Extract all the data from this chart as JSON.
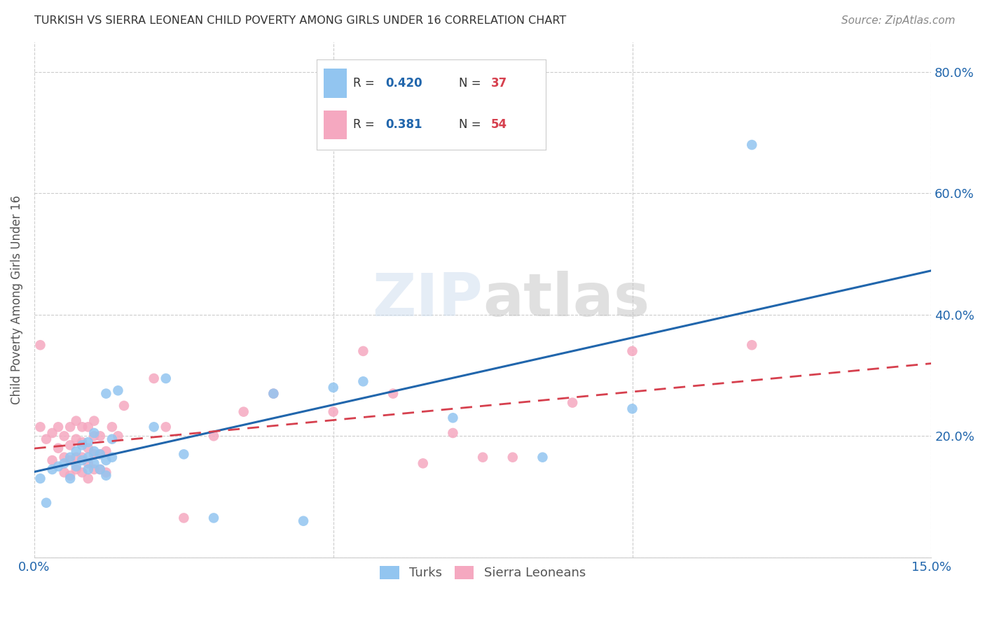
{
  "title": "TURKISH VS SIERRA LEONEAN CHILD POVERTY AMONG GIRLS UNDER 16 CORRELATION CHART",
  "source": "Source: ZipAtlas.com",
  "ylabel": "Child Poverty Among Girls Under 16",
  "xlim": [
    0.0,
    0.15
  ],
  "ylim": [
    0.0,
    0.85
  ],
  "xticks": [
    0.0,
    0.05,
    0.1,
    0.15
  ],
  "xtick_labels": [
    "0.0%",
    "",
    "",
    "15.0%"
  ],
  "yticks_right": [
    0.2,
    0.4,
    0.6,
    0.8
  ],
  "ytick_labels_right": [
    "20.0%",
    "40.0%",
    "60.0%",
    "80.0%"
  ],
  "turks_R": "0.420",
  "turks_N": "37",
  "sierra_R": "0.381",
  "sierra_N": "54",
  "turks_color": "#92C5F0",
  "sierra_color": "#F5A8C0",
  "turks_line_color": "#2166AC",
  "sierra_line_color": "#D6404E",
  "sierra_line_dashed": true,
  "legend_R_color": "#2166AC",
  "legend_N_color": "#D6404E",
  "watermark": "ZIPatlas",
  "background_color": "#FFFFFF",
  "grid_color": "#CCCCCC",
  "title_color": "#333333",
  "turks_scatter_x": [
    0.001,
    0.002,
    0.003,
    0.004,
    0.005,
    0.006,
    0.006,
    0.007,
    0.007,
    0.008,
    0.008,
    0.009,
    0.009,
    0.009,
    0.01,
    0.01,
    0.01,
    0.011,
    0.011,
    0.012,
    0.012,
    0.012,
    0.013,
    0.013,
    0.014,
    0.02,
    0.022,
    0.025,
    0.03,
    0.04,
    0.045,
    0.05,
    0.055,
    0.07,
    0.085,
    0.1,
    0.12
  ],
  "turks_scatter_y": [
    0.13,
    0.09,
    0.145,
    0.15,
    0.155,
    0.13,
    0.165,
    0.15,
    0.175,
    0.16,
    0.185,
    0.145,
    0.165,
    0.19,
    0.155,
    0.175,
    0.205,
    0.145,
    0.17,
    0.135,
    0.16,
    0.27,
    0.195,
    0.165,
    0.275,
    0.215,
    0.295,
    0.17,
    0.065,
    0.27,
    0.06,
    0.28,
    0.29,
    0.23,
    0.165,
    0.245,
    0.68
  ],
  "sierra_scatter_x": [
    0.001,
    0.001,
    0.002,
    0.003,
    0.003,
    0.004,
    0.004,
    0.005,
    0.005,
    0.005,
    0.006,
    0.006,
    0.006,
    0.006,
    0.007,
    0.007,
    0.007,
    0.007,
    0.008,
    0.008,
    0.008,
    0.008,
    0.009,
    0.009,
    0.009,
    0.009,
    0.01,
    0.01,
    0.01,
    0.01,
    0.011,
    0.011,
    0.011,
    0.012,
    0.012,
    0.013,
    0.014,
    0.015,
    0.02,
    0.022,
    0.025,
    0.03,
    0.035,
    0.04,
    0.05,
    0.055,
    0.06,
    0.065,
    0.07,
    0.075,
    0.08,
    0.09,
    0.1,
    0.12
  ],
  "sierra_scatter_y": [
    0.215,
    0.35,
    0.195,
    0.16,
    0.205,
    0.18,
    0.215,
    0.14,
    0.165,
    0.2,
    0.135,
    0.16,
    0.185,
    0.215,
    0.145,
    0.165,
    0.195,
    0.225,
    0.14,
    0.165,
    0.19,
    0.215,
    0.13,
    0.155,
    0.18,
    0.215,
    0.145,
    0.17,
    0.2,
    0.225,
    0.145,
    0.17,
    0.2,
    0.14,
    0.175,
    0.215,
    0.2,
    0.25,
    0.295,
    0.215,
    0.065,
    0.2,
    0.24,
    0.27,
    0.24,
    0.34,
    0.27,
    0.155,
    0.205,
    0.165,
    0.165,
    0.255,
    0.34,
    0.35
  ]
}
